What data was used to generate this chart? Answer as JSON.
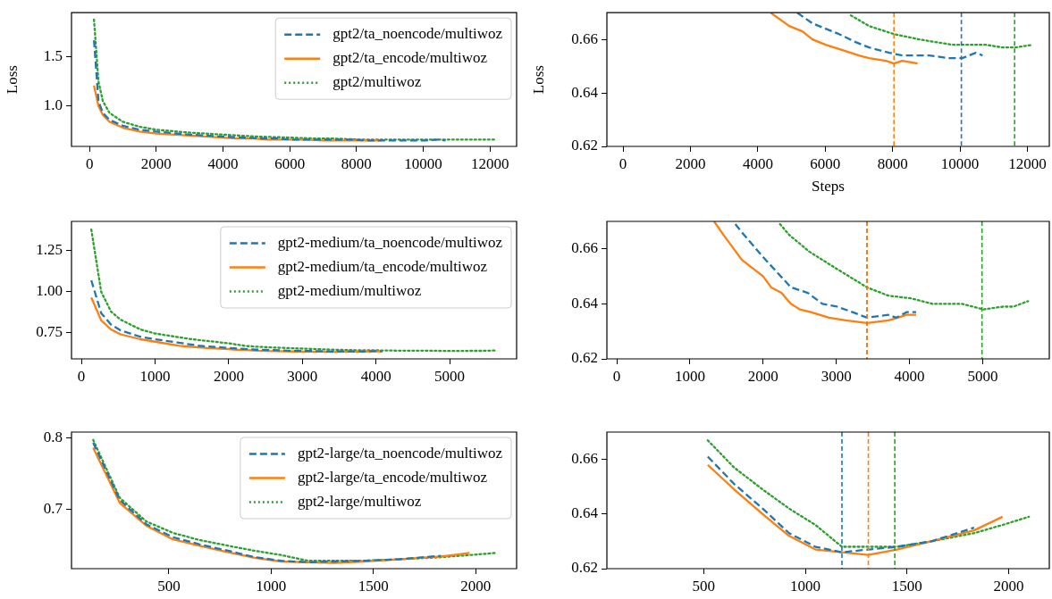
{
  "chart_data": [
    {
      "type": "line",
      "ylabel": "Loss",
      "xlim": [
        -540,
        12800
      ],
      "ylim": [
        0.59,
        1.95
      ],
      "xticks": [
        0,
        2000,
        4000,
        6000,
        8000,
        10000,
        12000
      ],
      "yticks": [
        {
          "value": 1,
          "label": "1.0"
        },
        1.5
      ],
      "legend": "top right",
      "series": [
        {
          "name": "gpt2/ta_noencode/multiwoz",
          "color": "#1f77b4",
          "line_style": "dashed",
          "x": [
            134,
            268,
            400,
            600,
            1000,
            1500,
            2000,
            3000,
            4000,
            5170,
            5620,
            6010,
            6410,
            6900,
            7300,
            7900,
            8290,
            8690,
            9080,
            9680,
            10070,
            10470,
            10670
          ],
          "values": [
            1.67,
            1.05,
            0.93,
            0.86,
            0.8,
            0.76,
            0.74,
            0.71,
            0.69,
            0.67,
            0.67,
            0.66,
            0.66,
            0.66,
            0.66,
            0.66,
            0.65,
            0.65,
            0.65,
            0.65,
            0.65,
            0.66,
            0.65
          ]
        },
        {
          "name": "gpt2/ta_encode/multiwoz",
          "color": "#ff7f0e",
          "line_style": "solid",
          "x": [
            134,
            268,
            400,
            600,
            1000,
            1500,
            2000,
            3000,
            4000,
            4380,
            4930,
            5320,
            5620,
            6010,
            6510,
            7000,
            7300,
            7800,
            8040,
            8290,
            8740
          ],
          "values": [
            1.21,
            1.0,
            0.91,
            0.84,
            0.78,
            0.74,
            0.72,
            0.7,
            0.68,
            0.67,
            0.67,
            0.66,
            0.66,
            0.66,
            0.66,
            0.65,
            0.65,
            0.65,
            0.65,
            0.65,
            0.65
          ]
        },
        {
          "name": "gpt2/multiwoz",
          "color": "#2ca02c",
          "line_style": "dotted",
          "x": [
            134,
            268,
            400,
            600,
            1000,
            1500,
            2000,
            3000,
            4000,
            5000,
            6000,
            6760,
            7300,
            8040,
            8790,
            9770,
            10760,
            11260,
            11650,
            12150
          ],
          "values": [
            1.88,
            1.25,
            1.05,
            0.93,
            0.84,
            0.79,
            0.76,
            0.73,
            0.71,
            0.69,
            0.68,
            0.67,
            0.67,
            0.66,
            0.66,
            0.66,
            0.66,
            0.66,
            0.66,
            0.66
          ]
        }
      ]
    },
    {
      "type": "line",
      "ylabel": "Loss",
      "xlabel": "Steps",
      "xlim": [
        -480,
        12650
      ],
      "ylim": [
        0.62,
        0.67
      ],
      "xticks": [
        0,
        2000,
        4000,
        6000,
        8000,
        10000,
        12000
      ],
      "yticks": [
        0.62,
        0.64,
        0.66
      ],
      "ref_lines": [
        {
          "axis": "x",
          "value": 10040,
          "color": "#1f77b4",
          "line_style": "dashed"
        },
        {
          "axis": "x",
          "value": 8040,
          "color": "#ff7f0e",
          "line_style": "dashed"
        },
        {
          "axis": "x",
          "value": 11620,
          "color": "#2ca02c",
          "line_style": "dashed"
        }
      ],
      "series": [
        {
          "color": "#1f77b4",
          "line_style": "dashed",
          "x": [
            5170,
            5620,
            6010,
            6410,
            6900,
            7300,
            7900,
            8290,
            8690,
            9080,
            9680,
            10070,
            10470,
            10670
          ],
          "values": [
            0.67,
            0.666,
            0.664,
            0.662,
            0.659,
            0.657,
            0.655,
            0.654,
            0.654,
            0.654,
            0.653,
            0.653,
            0.655,
            0.654
          ]
        },
        {
          "color": "#ff7f0e",
          "line_style": "solid",
          "x": [
            4380,
            4930,
            5320,
            5620,
            6010,
            6510,
            7000,
            7300,
            7800,
            8040,
            8290,
            8740
          ],
          "values": [
            0.67,
            0.665,
            0.663,
            0.66,
            0.658,
            0.656,
            0.654,
            0.653,
            0.652,
            0.651,
            0.652,
            0.651
          ]
        },
        {
          "color": "#2ca02c",
          "line_style": "dotted",
          "x": [
            6760,
            7300,
            8040,
            8790,
            9770,
            10760,
            11260,
            11650,
            12150
          ],
          "values": [
            0.669,
            0.665,
            0.662,
            0.66,
            0.658,
            0.658,
            0.657,
            0.657,
            0.658
          ]
        }
      ]
    },
    {
      "type": "line",
      "xlim": [
        -135,
        5910
      ],
      "ylim": [
        0.59,
        1.43
      ],
      "xticks": [
        0,
        1000,
        2000,
        3000,
        4000,
        5000
      ],
      "yticks": [
        {
          "value": 0.75,
          "label": "0.75"
        },
        {
          "value": 1,
          "label": "1.00"
        },
        {
          "value": 1.25,
          "label": "1.25"
        }
      ],
      "legend": "top right",
      "series": [
        {
          "name": "gpt2-medium/ta_noencode/multiwoz",
          "color": "#1f77b4",
          "line_style": "dashed",
          "x": [
            134,
            268,
            400,
            530,
            800,
            1000,
            1300,
            1620,
            1710,
            2000,
            2380,
            2610,
            2810,
            3010,
            3220,
            3420,
            3710,
            3820,
            3960,
            4090
          ],
          "values": [
            1.07,
            0.87,
            0.8,
            0.765,
            0.725,
            0.71,
            0.69,
            0.669,
            0.666,
            0.657,
            0.646,
            0.644,
            0.64,
            0.639,
            0.637,
            0.635,
            0.636,
            0.635,
            0.637,
            0.637
          ]
        },
        {
          "name": "gpt2-medium/ta_encode/multiwoz",
          "color": "#ff7f0e",
          "line_style": "solid",
          "x": [
            134,
            268,
            400,
            530,
            800,
            1000,
            1330,
            1460,
            1710,
            2000,
            2110,
            2250,
            2380,
            2500,
            2650,
            2900,
            3130,
            3420,
            3710,
            3840,
            3960,
            4090
          ],
          "values": [
            0.965,
            0.825,
            0.77,
            0.74,
            0.71,
            0.695,
            0.67,
            0.665,
            0.656,
            0.65,
            0.646,
            0.644,
            0.64,
            0.638,
            0.637,
            0.635,
            0.634,
            0.633,
            0.634,
            0.635,
            0.636,
            0.636
          ]
        },
        {
          "name": "gpt2-medium/multiwoz",
          "color": "#2ca02c",
          "line_style": "dotted",
          "x": [
            134,
            268,
            400,
            530,
            800,
            1000,
            1500,
            2000,
            2230,
            2360,
            2630,
            2990,
            3420,
            3710,
            4020,
            4320,
            4520,
            4720,
            5010,
            5280,
            5420,
            5620
          ],
          "values": [
            1.38,
            1.0,
            0.88,
            0.83,
            0.77,
            0.745,
            0.71,
            0.685,
            0.669,
            0.665,
            0.659,
            0.653,
            0.646,
            0.643,
            0.642,
            0.64,
            0.64,
            0.64,
            0.638,
            0.639,
            0.639,
            0.641
          ]
        }
      ]
    },
    {
      "type": "line",
      "xlim": [
        -135,
        5910
      ],
      "ylim": [
        0.62,
        0.67
      ],
      "xticks": [
        0,
        1000,
        2000,
        3000,
        4000,
        5000
      ],
      "yticks": [
        0.62,
        0.64,
        0.66
      ],
      "ref_lines": [
        {
          "axis": "x",
          "value": 3420,
          "color": "#1f77b4",
          "line_style": "dashed"
        },
        {
          "axis": "x",
          "value": 3420,
          "color": "#ff7f0e",
          "line_style": "dashed"
        },
        {
          "axis": "x",
          "value": 4990,
          "color": "#2ca02c",
          "line_style": "dashed"
        }
      ],
      "series": [
        {
          "color": "#1f77b4",
          "line_style": "dashed",
          "x": [
            1620,
            1710,
            2000,
            2380,
            2610,
            2810,
            3010,
            3220,
            3420,
            3710,
            3820,
            3960,
            4090
          ],
          "values": [
            0.669,
            0.666,
            0.657,
            0.646,
            0.644,
            0.64,
            0.639,
            0.637,
            0.635,
            0.636,
            0.635,
            0.637,
            0.637
          ]
        },
        {
          "color": "#ff7f0e",
          "line_style": "solid",
          "x": [
            1330,
            1460,
            1710,
            2000,
            2110,
            2250,
            2380,
            2500,
            2650,
            2900,
            3130,
            3420,
            3710,
            3840,
            3960,
            4090
          ],
          "values": [
            0.67,
            0.665,
            0.656,
            0.65,
            0.646,
            0.644,
            0.64,
            0.638,
            0.637,
            0.635,
            0.634,
            0.633,
            0.634,
            0.635,
            0.636,
            0.636
          ]
        },
        {
          "color": "#2ca02c",
          "line_style": "dotted",
          "x": [
            2230,
            2360,
            2630,
            2990,
            3420,
            3710,
            4020,
            4320,
            4520,
            4720,
            5010,
            5280,
            5420,
            5620
          ],
          "values": [
            0.669,
            0.665,
            0.659,
            0.653,
            0.646,
            0.643,
            0.642,
            0.64,
            0.64,
            0.64,
            0.638,
            0.639,
            0.639,
            0.641
          ]
        }
      ]
    },
    {
      "type": "line",
      "xlim": [
        24,
        2200
      ],
      "ylim": [
        0.617,
        0.808
      ],
      "xticks": [
        500,
        1000,
        1500,
        2000
      ],
      "yticks": [
        0.7,
        0.8
      ],
      "legend": "top right",
      "series": [
        {
          "name": "gpt2-large/ta_noencode/multiwoz",
          "color": "#1f77b4",
          "line_style": "dashed",
          "x": [
            130,
            260,
            390,
            520,
            650,
            790,
            920,
            1050,
            1180,
            1310,
            1450,
            1620,
            1830
          ],
          "values": [
            0.793,
            0.713,
            0.679,
            0.661,
            0.651,
            0.642,
            0.633,
            0.628,
            0.626,
            0.627,
            0.628,
            0.63,
            0.635
          ]
        },
        {
          "name": "gpt2-large/ta_encode/multiwoz",
          "color": "#ff7f0e",
          "line_style": "solid",
          "x": [
            130,
            260,
            390,
            520,
            650,
            790,
            920,
            1050,
            1180,
            1310,
            1450,
            1620,
            1830,
            1970
          ],
          "values": [
            0.786,
            0.709,
            0.677,
            0.658,
            0.649,
            0.64,
            0.632,
            0.627,
            0.626,
            0.625,
            0.627,
            0.63,
            0.634,
            0.639
          ]
        },
        {
          "name": "gpt2-large/multiwoz",
          "color": "#2ca02c",
          "line_style": "dotted",
          "x": [
            130,
            260,
            390,
            520,
            650,
            790,
            920,
            1050,
            1180,
            1310,
            1450,
            1620,
            1830,
            1970,
            2100
          ],
          "values": [
            0.797,
            0.716,
            0.683,
            0.667,
            0.657,
            0.649,
            0.642,
            0.636,
            0.628,
            0.628,
            0.628,
            0.63,
            0.633,
            0.636,
            0.639
          ]
        }
      ]
    },
    {
      "type": "line",
      "xlim": [
        24,
        2200
      ],
      "ylim": [
        0.62,
        0.67
      ],
      "xticks": [
        500,
        1000,
        1500,
        2000
      ],
      "yticks": [
        0.62,
        0.64,
        0.66
      ],
      "ref_lines": [
        {
          "axis": "x",
          "value": 1180,
          "color": "#1f77b4",
          "line_style": "dashed"
        },
        {
          "axis": "x",
          "value": 1310,
          "color": "#ff7f0e",
          "line_style": "dashed"
        },
        {
          "axis": "x",
          "value": 1440,
          "color": "#2ca02c",
          "line_style": "dashed"
        }
      ],
      "series": [
        {
          "color": "#1f77b4",
          "line_style": "dashed",
          "x": [
            520,
            650,
            790,
            920,
            1050,
            1180,
            1310,
            1450,
            1620,
            1830
          ],
          "values": [
            0.661,
            0.651,
            0.642,
            0.633,
            0.628,
            0.626,
            0.627,
            0.628,
            0.63,
            0.635
          ]
        },
        {
          "color": "#ff7f0e",
          "line_style": "solid",
          "x": [
            520,
            650,
            790,
            920,
            1050,
            1180,
            1310,
            1450,
            1620,
            1830,
            1970
          ],
          "values": [
            0.658,
            0.649,
            0.64,
            0.632,
            0.627,
            0.626,
            0.625,
            0.627,
            0.63,
            0.634,
            0.639
          ]
        },
        {
          "color": "#2ca02c",
          "line_style": "dotted",
          "x": [
            520,
            650,
            790,
            920,
            1050,
            1180,
            1310,
            1450,
            1620,
            1830,
            1970,
            2100
          ],
          "values": [
            0.667,
            0.657,
            0.649,
            0.642,
            0.636,
            0.628,
            0.628,
            0.628,
            0.63,
            0.633,
            0.636,
            0.639
          ]
        }
      ]
    }
  ]
}
